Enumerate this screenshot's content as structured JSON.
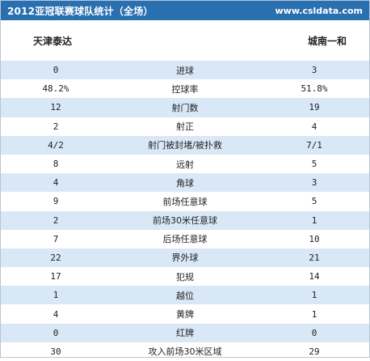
{
  "header": {
    "title": "2012亚冠联赛球队统计（全场）",
    "site": "www.csldata.com"
  },
  "teams": {
    "home": "天津泰达",
    "away": "城南一和"
  },
  "rows": [
    {
      "home": "0",
      "label": "进球",
      "away": "3"
    },
    {
      "home": "48.2%",
      "label": "控球率",
      "away": "51.8%"
    },
    {
      "home": "12",
      "label": "射门数",
      "away": "19"
    },
    {
      "home": "2",
      "label": "射正",
      "away": "4"
    },
    {
      "home": "4/2",
      "label": "射门被封堵/被扑救",
      "away": "7/1"
    },
    {
      "home": "8",
      "label": "远射",
      "away": "5"
    },
    {
      "home": "4",
      "label": "角球",
      "away": "3"
    },
    {
      "home": "9",
      "label": "前场任意球",
      "away": "5"
    },
    {
      "home": "2",
      "label": "前场30米任意球",
      "away": "1"
    },
    {
      "home": "7",
      "label": "后场任意球",
      "away": "10"
    },
    {
      "home": "22",
      "label": "界外球",
      "away": "21"
    },
    {
      "home": "17",
      "label": "犯规",
      "away": "14"
    },
    {
      "home": "1",
      "label": "越位",
      "away": "1"
    },
    {
      "home": "4",
      "label": "黄牌",
      "away": "1"
    },
    {
      "home": "0",
      "label": "红牌",
      "away": "0"
    },
    {
      "home": "30",
      "label": "攻入前场30米区域",
      "away": "29"
    }
  ],
  "colors": {
    "header_bg": "#2a6fb0",
    "row_alt_bg": "#d9e8f6"
  }
}
